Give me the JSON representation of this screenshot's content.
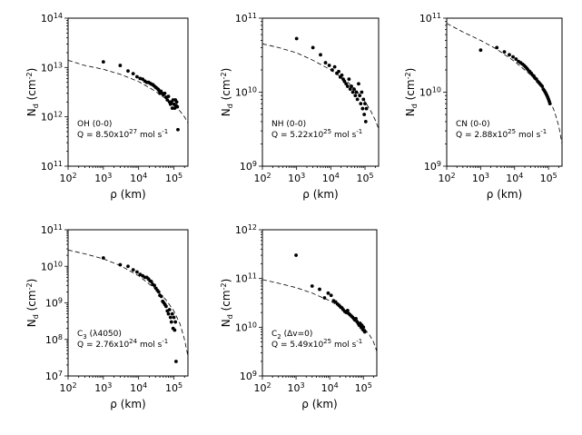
{
  "chart_data": [
    {
      "type": "scatter",
      "id": "oh",
      "annotation_lines": [
        "OH (0-0)",
        "Q = 8.50x10^27 mol s^-1"
      ],
      "xlabel": "ρ (km)",
      "ylabel": "N_d (cm^-2)",
      "x_scale": "log",
      "y_scale": "log",
      "xlim": [
        100,
        250000
      ],
      "ylim": [
        100000000000.0,
        100000000000000.0
      ],
      "x_ticks": [
        "10^2",
        "10^3",
        "10^4",
        "10^5"
      ],
      "y_ticks": [
        "10^11",
        "10^12",
        "10^13",
        "10^14"
      ],
      "observed": {
        "x": [
          1000,
          3000,
          5000,
          7000,
          9000,
          11000,
          13000,
          15000,
          17000,
          19000,
          21000,
          23000,
          25000,
          27000,
          30000,
          33000,
          36000,
          38000,
          40000,
          43000,
          46000,
          50000,
          55000,
          60000,
          65000,
          70000,
          75000,
          80000,
          85000,
          90000,
          95000,
          100000,
          105000,
          110000,
          115000,
          120000,
          125000,
          130000
        ],
        "y": [
          13000000000000.0,
          11000000000000.0,
          8500000000000.0,
          7500000000000.0,
          6500000000000.0,
          6000000000000.0,
          5800000000000.0,
          5300000000000.0,
          5000000000000.0,
          5000000000000.0,
          4800000000000.0,
          4600000000000.0,
          4500000000000.0,
          4300000000000.0,
          4000000000000.0,
          3800000000000.0,
          3600000000000.0,
          3400000000000.0,
          3000000000000.0,
          3300000000000.0,
          3000000000000.0,
          2800000000000.0,
          3000000000000.0,
          2500000000000.0,
          2200000000000.0,
          2600000000000.0,
          2000000000000.0,
          1800000000000.0,
          2000000000000.0,
          1500000000000.0,
          2200000000000.0,
          1800000000000.0,
          1500000000000.0,
          2200000000000.0,
          1700000000000.0,
          2000000000000.0,
          1600000000000.0,
          550000000000.0
        ]
      },
      "model": {
        "x": [
          100,
          300,
          1000,
          3000,
          10000,
          30000,
          60000,
          100000,
          150000,
          200000,
          250000
        ],
        "y": [
          14000000000000.0,
          11000000000000.0,
          9200000000000.0,
          7300000000000.0,
          5200000000000.0,
          3300000000000.0,
          2300000000000.0,
          1700000000000.0,
          1300000000000.0,
          1000000000000.0,
          750000000000.0
        ]
      }
    },
    {
      "type": "scatter",
      "id": "nh",
      "annotation_lines": [
        "NH (0-0)",
        "Q = 5.22x10^25 mol s^-1"
      ],
      "xlabel": "ρ (km)",
      "ylabel": "N_d (cm^-2)",
      "x_scale": "log",
      "y_scale": "log",
      "xlim": [
        100,
        250000
      ],
      "ylim": [
        1000000000.0,
        100000000000.0
      ],
      "x_ticks": [
        "10^2",
        "10^3",
        "10^4",
        "10^5"
      ],
      "y_ticks": [
        "10^9",
        "10^10",
        "10^11"
      ],
      "observed": {
        "x": [
          1000,
          3000,
          5000,
          7000,
          9000,
          11000,
          13000,
          15000,
          17000,
          19000,
          21000,
          23000,
          25000,
          28000,
          31000,
          34000,
          37000,
          40000,
          44000,
          48000,
          52000,
          56000,
          60000,
          65000,
          70000,
          75000,
          80000,
          85000,
          90000,
          95000,
          100000,
          105000,
          110000
        ],
        "y": [
          53000000000.0,
          40000000000.0,
          32000000000.0,
          25000000000.0,
          23000000000.0,
          20000000000.0,
          22000000000.0,
          18000000000.0,
          19000000000.0,
          16000000000.0,
          17000000000.0,
          15000000000.0,
          14000000000.0,
          13000000000.0,
          12000000000.0,
          15000000000.0,
          11000000000.0,
          12000000000.0,
          10000000000.0,
          11000000000.0,
          9000000000.0,
          10000000000.0,
          8000000000.0,
          13000000000.0,
          9000000000.0,
          7000000000.0,
          10000000000.0,
          6000000000.0,
          8000000000.0,
          5000000000.0,
          7000000000.0,
          4000000000.0,
          6000000000.0
        ]
      },
      "model": {
        "x": [
          100,
          300,
          1000,
          3000,
          10000,
          30000,
          60000,
          100000,
          150000,
          200000,
          250000
        ],
        "y": [
          45000000000.0,
          40000000000.0,
          34000000000.0,
          27000000000.0,
          20000000000.0,
          14000000000.0,
          10000000000.0,
          7500000000.0,
          5500000000.0,
          4200000000.0,
          3200000000.0
        ]
      }
    },
    {
      "type": "scatter",
      "id": "cn",
      "annotation_lines": [
        "CN (0-0)",
        "Q = 2.88x10^25 mol s^-1"
      ],
      "xlabel": "ρ (km)",
      "ylabel": "N_d (cm^-2)",
      "x_scale": "log",
      "y_scale": "log",
      "xlim": [
        100,
        250000
      ],
      "ylim": [
        1000000000.0,
        100000000000.0
      ],
      "x_ticks": [
        "10^2",
        "10^3",
        "10^4",
        "10^5"
      ],
      "y_ticks": [
        "10^9",
        "10^10",
        "10^11"
      ],
      "observed": {
        "x": [
          1000,
          3000,
          5000,
          7000,
          9000,
          11000,
          13000,
          15000,
          17000,
          19000,
          21000,
          23000,
          25000,
          28000,
          31000,
          34000,
          37000,
          40000,
          44000,
          48000,
          52000,
          56000,
          60000,
          65000,
          70000,
          75000,
          80000,
          85000,
          90000,
          95000,
          100000,
          105000,
          110000
        ],
        "y": [
          37000000000.0,
          40000000000.0,
          35000000000.0,
          32000000000.0,
          30000000000.0,
          28000000000.0,
          26000000000.0,
          25000000000.0,
          24000000000.0,
          23000000000.0,
          22000000000.0,
          21000000000.0,
          20000000000.0,
          19000000000.0,
          18000000000.0,
          17000000000.0,
          16500000000.0,
          15500000000.0,
          15000000000.0,
          14000000000.0,
          13500000000.0,
          13000000000.0,
          12500000000.0,
          12000000000.0,
          11000000000.0,
          10500000000.0,
          10000000000.0,
          9500000000.0,
          9000000000.0,
          8500000000.0,
          8000000000.0,
          7500000000.0,
          7000000000.0
        ]
      },
      "model": {
        "x": [
          100,
          300,
          1000,
          3000,
          10000,
          30000,
          60000,
          100000,
          150000,
          200000,
          250000
        ],
        "y": [
          85000000000.0,
          65000000000.0,
          50000000000.0,
          38000000000.0,
          26000000000.0,
          17000000000.0,
          12000000000.0,
          8500000000.0,
          5500000000.0,
          3500000000.0,
          2000000000.0
        ]
      }
    },
    {
      "type": "scatter",
      "id": "c3",
      "annotation_lines": [
        "C_3 (λ4050)",
        "Q = 2.76x10^24 mol s^-1"
      ],
      "xlabel": "ρ (km)",
      "ylabel": "N_d (cm^-2)",
      "x_scale": "log",
      "y_scale": "log",
      "xlim": [
        100,
        250000
      ],
      "ylim": [
        10000000.0,
        100000000000.0
      ],
      "x_ticks": [
        "10^2",
        "10^3",
        "10^4",
        "10^5"
      ],
      "y_ticks": [
        "10^7",
        "10^8",
        "10^9",
        "10^10",
        "10^11"
      ],
      "observed": {
        "x": [
          1000,
          3000,
          5000,
          7000,
          9000,
          11000,
          13000,
          15000,
          17000,
          19000,
          21000,
          23000,
          25000,
          28000,
          31000,
          34000,
          37000,
          40000,
          44000,
          48000,
          52000,
          56000,
          60000,
          65000,
          70000,
          75000,
          80000,
          85000,
          90000,
          95000,
          100000,
          105000,
          110000,
          115000
        ],
        "y": [
          17000000000.0,
          11000000000.0,
          10000000000.0,
          8000000000.0,
          7000000000.0,
          6000000000.0,
          5500000000.0,
          5000000000.0,
          5000000000.0,
          4500000000.0,
          4000000000.0,
          3800000000.0,
          3200000000.0,
          3000000000.0,
          2500000000.0,
          2200000000.0,
          2000000000.0,
          1600000000.0,
          1500000000.0,
          1100000000.0,
          1000000000.0,
          900000000.0,
          800000000.0,
          600000000.0,
          500000000.0,
          650000000.0,
          400000000.0,
          300000000.0,
          500000000.0,
          200000000.0,
          400000000.0,
          180000000.0,
          300000000.0,
          25000000.0
        ]
      },
      "model": {
        "x": [
          100,
          300,
          1000,
          3000,
          10000,
          30000,
          60000,
          100000,
          150000,
          200000,
          250000
        ],
        "y": [
          28000000000.0,
          22000000000.0,
          16000000000.0,
          10500000000.0,
          5500000000.0,
          2400000000.0,
          1200000000.0,
          600000000.0,
          260000000.0,
          100000000.0,
          35000000.0
        ]
      }
    },
    {
      "type": "scatter",
      "id": "c2",
      "annotation_lines": [
        "C_2 (Δv=0)",
        "Q = 5.49x10^25 mol s^-1"
      ],
      "xlabel": "ρ (km)",
      "ylabel": "N_d (cm^-2)",
      "x_scale": "log",
      "y_scale": "log",
      "xlim": [
        100,
        250000
      ],
      "ylim": [
        1000000000.0,
        1000000000000.0
      ],
      "x_ticks": [
        "10^2",
        "10^3",
        "10^4",
        "10^5"
      ],
      "y_ticks": [
        "10^9",
        "10^10",
        "10^11",
        "10^12"
      ],
      "observed": {
        "x": [
          1000,
          3000,
          5000,
          7000,
          9000,
          11000,
          13000,
          15000,
          17000,
          19000,
          21000,
          23000,
          25000,
          28000,
          31000,
          34000,
          37000,
          40000,
          44000,
          48000,
          52000,
          56000,
          60000,
          65000,
          70000,
          75000,
          80000,
          85000,
          90000,
          95000,
          100000,
          105000,
          110000
        ],
        "y": [
          300000000000.0,
          70000000000.0,
          60000000000.0,
          40000000000.0,
          50000000000.0,
          45000000000.0,
          35000000000.0,
          33000000000.0,
          30000000000.0,
          28000000000.0,
          26000000000.0,
          25000000000.0,
          23000000000.0,
          21000000000.0,
          20000000000.0,
          22000000000.0,
          19000000000.0,
          18000000000.0,
          17000000000.0,
          16000000000.0,
          15000000000.0,
          14000000000.0,
          15000000000.0,
          13000000000.0,
          12000000000.0,
          11000000000.0,
          12000000000.0,
          10000000000.0,
          11000000000.0,
          9000000000.0,
          10000000000.0,
          8500000000.0,
          8000000000.0
        ]
      },
      "model": {
        "x": [
          100,
          300,
          1000,
          3000,
          10000,
          30000,
          60000,
          100000,
          150000,
          200000,
          250000
        ],
        "y": [
          95000000000.0,
          80000000000.0,
          65000000000.0,
          50000000000.0,
          35000000000.0,
          22000000000.0,
          15000000000.0,
          10000000000.0,
          7000000000.0,
          5000000000.0,
          3200000000.0
        ]
      }
    }
  ]
}
